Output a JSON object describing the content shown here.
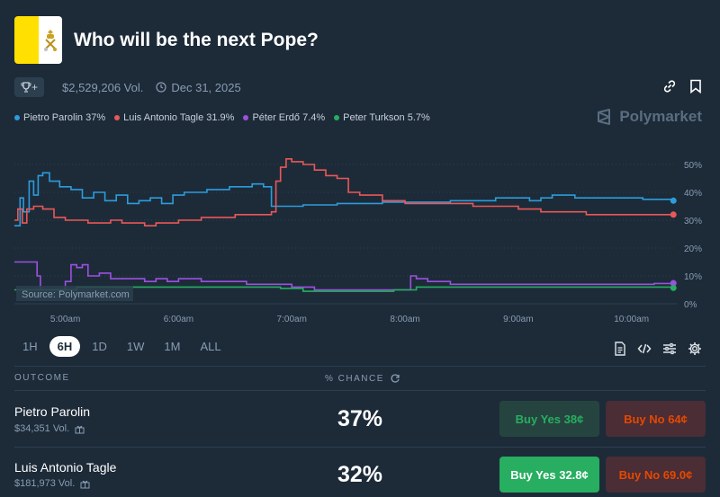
{
  "header": {
    "title": "Who will be the next Pope?",
    "volume": "$2,529,206 Vol.",
    "end_date": "Dec 31, 2025",
    "trophy_label": "+"
  },
  "legend": [
    {
      "label": "Pietro Parolin 37%",
      "color": "#2d9cdb"
    },
    {
      "label": "Luis Antonio Tagle 31.9%",
      "color": "#eb5757"
    },
    {
      "label": "Péter Erdő 7.4%",
      "color": "#9b51e0"
    },
    {
      "label": "Peter Turkson 5.7%",
      "color": "#27ae60"
    }
  ],
  "brand": "Polymarket",
  "source_label": "Source: Polymarket.com",
  "chart_data": {
    "type": "line",
    "x_ticks": [
      "5:00am",
      "6:00am",
      "7:00am",
      "8:00am",
      "9:00am",
      "10:00am"
    ],
    "y_ticks": [
      "50%",
      "40%",
      "30%",
      "20%",
      "10%",
      "0%"
    ],
    "ylim": [
      0,
      50
    ],
    "xlim": [
      4.55,
      10.4
    ],
    "series": [
      {
        "name": "Pietro Parolin",
        "color": "#2d9cdb",
        "x": [
          4.55,
          4.6,
          4.63,
          4.68,
          4.72,
          4.76,
          4.8,
          4.86,
          4.95,
          5.05,
          5.15,
          5.25,
          5.35,
          5.45,
          5.55,
          5.65,
          5.75,
          5.85,
          5.95,
          6.05,
          6.15,
          6.25,
          6.35,
          6.45,
          6.55,
          6.65,
          6.75,
          6.8,
          6.82,
          6.9,
          7.0,
          7.1,
          7.2,
          7.4,
          7.6,
          7.8,
          8.0,
          8.2,
          8.4,
          8.6,
          8.8,
          9.0,
          9.1,
          9.2,
          9.3,
          9.5,
          9.7,
          9.9,
          10.1,
          10.3,
          10.37
        ],
        "y": [
          28,
          38,
          33,
          44,
          39,
          46,
          47,
          44,
          42,
          41,
          38,
          40,
          37,
          39,
          36,
          37,
          38,
          36,
          39,
          40,
          40,
          41,
          41,
          42,
          42,
          43,
          42,
          42,
          35,
          35,
          35,
          35.5,
          35.5,
          36,
          36,
          36.5,
          36.5,
          36.5,
          37,
          37,
          38,
          38,
          37,
          38,
          39,
          38,
          38,
          38,
          37.5,
          37.5,
          37
        ]
      },
      {
        "name": "Luis Antonio Tagle",
        "color": "#eb5757",
        "x": [
          4.55,
          4.58,
          4.62,
          4.66,
          4.72,
          4.8,
          4.9,
          5.0,
          5.1,
          5.2,
          5.3,
          5.4,
          5.5,
          5.6,
          5.7,
          5.8,
          5.9,
          6.0,
          6.1,
          6.2,
          6.3,
          6.4,
          6.5,
          6.6,
          6.7,
          6.78,
          6.82,
          6.86,
          6.9,
          6.95,
          7.0,
          7.1,
          7.2,
          7.3,
          7.4,
          7.5,
          7.6,
          7.8,
          8.0,
          8.2,
          8.4,
          8.6,
          8.8,
          9.0,
          9.2,
          9.4,
          9.6,
          9.8,
          10.0,
          10.2,
          10.37
        ],
        "y": [
          30,
          34,
          29,
          34,
          35,
          34,
          31,
          30,
          30,
          29,
          29,
          30,
          29,
          29,
          28,
          29,
          29,
          30,
          30,
          31,
          31,
          31,
          32,
          32,
          32,
          32,
          33,
          44,
          49,
          52,
          51,
          50,
          48,
          46,
          45,
          40,
          39,
          37,
          36,
          36,
          36,
          35,
          35,
          34,
          33,
          33,
          32,
          32,
          32,
          32,
          32
        ]
      },
      {
        "name": "Péter Erdő",
        "color": "#9b51e0",
        "x": [
          4.55,
          4.6,
          4.7,
          4.75,
          4.78,
          4.82,
          4.85,
          4.9,
          5.0,
          5.05,
          5.1,
          5.15,
          5.2,
          5.3,
          5.4,
          5.5,
          5.6,
          5.7,
          5.8,
          5.9,
          6.0,
          6.2,
          6.4,
          6.6,
          6.8,
          7.0,
          7.2,
          7.4,
          7.6,
          7.8,
          7.95,
          8.0,
          8.05,
          8.1,
          8.2,
          8.4,
          8.6,
          8.8,
          9.0,
          9.2,
          9.4,
          9.6,
          9.8,
          10.0,
          10.2,
          10.37
        ],
        "y": [
          15,
          15,
          15,
          10,
          5,
          5,
          5,
          5,
          8,
          14,
          13,
          14,
          10,
          11,
          9,
          9,
          9,
          8,
          9,
          8,
          9,
          8,
          8,
          7,
          7,
          6,
          5,
          5,
          5,
          5,
          5,
          5,
          10,
          9,
          8,
          7,
          7,
          7,
          7,
          7,
          7,
          7,
          7,
          7,
          7.3,
          7.4
        ]
      },
      {
        "name": "Peter Turkson",
        "color": "#27ae60",
        "x": [
          4.55,
          4.7,
          4.9,
          5.1,
          5.3,
          5.5,
          5.7,
          5.9,
          6.1,
          6.3,
          6.5,
          6.7,
          6.9,
          7.1,
          7.3,
          7.5,
          7.7,
          7.9,
          8.1,
          8.3,
          8.5,
          8.7,
          8.9,
          9.1,
          9.3,
          9.5,
          9.7,
          9.9,
          10.1,
          10.37
        ],
        "y": [
          5,
          5,
          5,
          6,
          6,
          6,
          6,
          6,
          6,
          6,
          6,
          6,
          5.5,
          4.5,
          4.5,
          4.5,
          4.5,
          5,
          6,
          6,
          6,
          6,
          6,
          6,
          6,
          6,
          6,
          6,
          6,
          5.7
        ]
      }
    ]
  },
  "time_ranges": [
    "1H",
    "6H",
    "1D",
    "1W",
    "1M",
    "ALL"
  ],
  "active_range": "6H",
  "table": {
    "col_outcome": "OUTCOME",
    "col_chance": "% CHANCE",
    "rows": [
      {
        "name": "Pietro Parolin",
        "volume": "$34,351 Vol.",
        "chance": "37%",
        "yes": "Buy Yes 38¢",
        "no": "Buy No 64¢"
      },
      {
        "name": "Luis Antonio Tagle",
        "volume": "$181,973 Vol.",
        "chance": "32%",
        "yes": "Buy Yes 32.8¢",
        "no": "Buy No 69.0¢"
      }
    ]
  }
}
